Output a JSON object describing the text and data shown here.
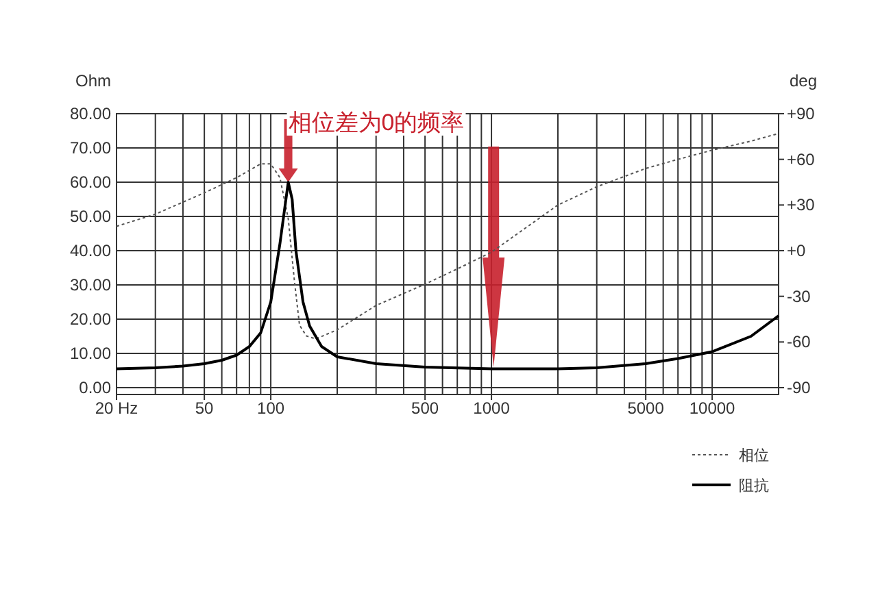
{
  "chart_data": {
    "type": "line",
    "ylabel": "Ohm",
    "y2label": "deg",
    "log": "x",
    "xlim": [
      20,
      20000
    ],
    "xticks": [
      {
        "value": 20,
        "label": "20 Hz"
      },
      50,
      100,
      500,
      1000,
      5000,
      10000
    ],
    "ylim": [
      -2,
      80
    ],
    "yticks": [
      {
        "value": 0,
        "label": "0.00"
      },
      {
        "value": 10,
        "label": "10.00"
      },
      {
        "value": 20,
        "label": "20.00"
      },
      {
        "value": 30,
        "label": "30.00"
      },
      {
        "value": 40,
        "label": "40.00"
      },
      {
        "value": 50,
        "label": "50.00"
      },
      {
        "value": 60,
        "label": "60.00"
      },
      {
        "value": 70,
        "label": "70.00"
      },
      {
        "value": 80,
        "label": "80.00"
      }
    ],
    "y2lim": [
      -94.5,
      90
    ],
    "y2ticks": [
      {
        "value": 90,
        "label": "+90"
      },
      {
        "value": 60,
        "label": "+60"
      },
      {
        "value": 30,
        "label": "+30"
      },
      {
        "value": 0,
        "label": "+0"
      },
      -30,
      -60,
      -90
    ],
    "grid": true,
    "legend": "bottom right",
    "annotations": [
      {
        "text": "相位差为0的频率",
        "x": 120,
        "y": 60
      }
    ],
    "series": [
      {
        "name": "相位",
        "color": "#555555",
        "axis": "y2",
        "line_style": "dotted",
        "x": [
          20,
          30,
          50,
          70,
          90,
          100,
          110,
          120,
          128,
          135,
          145,
          160,
          200,
          300,
          500,
          700,
          1000,
          2000,
          3000,
          5000,
          7000,
          10000,
          15000,
          20000
        ],
        "values": [
          16,
          24,
          38,
          48,
          57,
          57,
          48,
          21,
          -20,
          -49,
          -56,
          -58,
          -52,
          -36,
          -22,
          -12,
          -1,
          30,
          42,
          54,
          60,
          66,
          72,
          77
        ]
      },
      {
        "name": "阻抗",
        "color": "#000000",
        "line_style": "solid",
        "x": [
          20,
          30,
          40,
          50,
          60,
          70,
          80,
          90,
          100,
          110,
          120,
          125,
          130,
          140,
          150,
          170,
          200,
          300,
          500,
          1000,
          2000,
          3000,
          5000,
          7000,
          10000,
          15000,
          20000
        ],
        "values": [
          5.5,
          5.8,
          6.3,
          7,
          8,
          9.5,
          12,
          16,
          25,
          42,
          60,
          55,
          40,
          25,
          18,
          12,
          9,
          7,
          6,
          5.5,
          5.5,
          5.8,
          7,
          8.5,
          10.5,
          15,
          21
        ]
      }
    ]
  }
}
